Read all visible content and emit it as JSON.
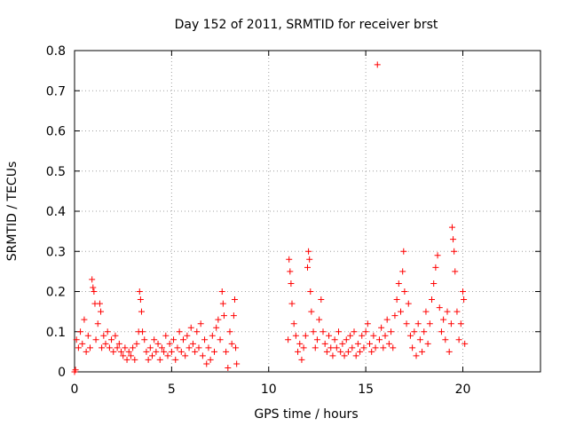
{
  "chart_data": {
    "type": "scatter",
    "title": "Day 152 of 2011, SRMTID for receiver brst",
    "xlabel": "GPS time / hours",
    "ylabel": "SRMTID / TECUs",
    "xlim": [
      0,
      24
    ],
    "ylim": [
      0,
      0.8
    ],
    "x_ticks": [
      0,
      5,
      10,
      15,
      20
    ],
    "x_tick_labels": [
      "0",
      "5",
      "10",
      "15",
      "20"
    ],
    "y_ticks": [
      0,
      0.1,
      0.2,
      0.3,
      0.4,
      0.5,
      0.6,
      0.7,
      0.8
    ],
    "y_tick_labels": [
      "0",
      "0.1",
      "0.2",
      "0.3",
      "0.4",
      "0.5",
      "0.6",
      "0.7",
      "0.8"
    ],
    "grid": true,
    "marker": "+",
    "marker_color": "#ff0000",
    "series": [
      {
        "name": "brst",
        "points": [
          [
            0.0,
            0.0
          ],
          [
            0.05,
            0.005
          ],
          [
            0.1,
            0.08
          ],
          [
            0.2,
            0.06
          ],
          [
            0.3,
            0.1
          ],
          [
            0.4,
            0.07
          ],
          [
            0.5,
            0.13
          ],
          [
            0.6,
            0.05
          ],
          [
            0.7,
            0.09
          ],
          [
            0.8,
            0.06
          ],
          [
            0.9,
            0.23
          ],
          [
            0.95,
            0.21
          ],
          [
            1.0,
            0.2
          ],
          [
            1.05,
            0.17
          ],
          [
            1.1,
            0.08
          ],
          [
            1.2,
            0.12
          ],
          [
            1.3,
            0.17
          ],
          [
            1.35,
            0.15
          ],
          [
            1.4,
            0.06
          ],
          [
            1.5,
            0.09
          ],
          [
            1.6,
            0.07
          ],
          [
            1.7,
            0.1
          ],
          [
            1.8,
            0.06
          ],
          [
            1.9,
            0.08
          ],
          [
            2.0,
            0.05
          ],
          [
            2.1,
            0.09
          ],
          [
            2.2,
            0.06
          ],
          [
            2.3,
            0.07
          ],
          [
            2.4,
            0.05
          ],
          [
            2.5,
            0.04
          ],
          [
            2.6,
            0.06
          ],
          [
            2.7,
            0.03
          ],
          [
            2.8,
            0.05
          ],
          [
            2.9,
            0.04
          ],
          [
            3.0,
            0.06
          ],
          [
            3.1,
            0.03
          ],
          [
            3.2,
            0.07
          ],
          [
            3.3,
            0.1
          ],
          [
            3.35,
            0.2
          ],
          [
            3.4,
            0.18
          ],
          [
            3.45,
            0.15
          ],
          [
            3.5,
            0.1
          ],
          [
            3.6,
            0.08
          ],
          [
            3.7,
            0.05
          ],
          [
            3.8,
            0.03
          ],
          [
            3.9,
            0.06
          ],
          [
            4.0,
            0.04
          ],
          [
            4.1,
            0.08
          ],
          [
            4.2,
            0.05
          ],
          [
            4.3,
            0.07
          ],
          [
            4.4,
            0.03
          ],
          [
            4.5,
            0.06
          ],
          [
            4.6,
            0.05
          ],
          [
            4.7,
            0.09
          ],
          [
            4.8,
            0.04
          ],
          [
            4.9,
            0.07
          ],
          [
            5.0,
            0.05
          ],
          [
            5.1,
            0.08
          ],
          [
            5.2,
            0.03
          ],
          [
            5.3,
            0.06
          ],
          [
            5.4,
            0.1
          ],
          [
            5.5,
            0.05
          ],
          [
            5.6,
            0.08
          ],
          [
            5.7,
            0.04
          ],
          [
            5.8,
            0.09
          ],
          [
            5.9,
            0.06
          ],
          [
            6.0,
            0.11
          ],
          [
            6.1,
            0.07
          ],
          [
            6.2,
            0.05
          ],
          [
            6.3,
            0.1
          ],
          [
            6.4,
            0.06
          ],
          [
            6.5,
            0.12
          ],
          [
            6.6,
            0.04
          ],
          [
            6.7,
            0.08
          ],
          [
            6.8,
            0.02
          ],
          [
            6.9,
            0.06
          ],
          [
            7.0,
            0.03
          ],
          [
            7.1,
            0.09
          ],
          [
            7.2,
            0.05
          ],
          [
            7.3,
            0.11
          ],
          [
            7.4,
            0.13
          ],
          [
            7.5,
            0.08
          ],
          [
            7.6,
            0.2
          ],
          [
            7.65,
            0.17
          ],
          [
            7.7,
            0.14
          ],
          [
            7.8,
            0.05
          ],
          [
            7.9,
            0.01
          ],
          [
            8.0,
            0.1
          ],
          [
            8.1,
            0.07
          ],
          [
            8.2,
            0.14
          ],
          [
            8.25,
            0.18
          ],
          [
            8.3,
            0.06
          ],
          [
            8.35,
            0.02
          ],
          [
            11.0,
            0.08
          ],
          [
            11.05,
            0.28
          ],
          [
            11.1,
            0.25
          ],
          [
            11.15,
            0.22
          ],
          [
            11.2,
            0.17
          ],
          [
            11.3,
            0.12
          ],
          [
            11.4,
            0.09
          ],
          [
            11.5,
            0.05
          ],
          [
            11.6,
            0.07
          ],
          [
            11.7,
            0.03
          ],
          [
            11.8,
            0.06
          ],
          [
            11.9,
            0.09
          ],
          [
            12.0,
            0.26
          ],
          [
            12.05,
            0.3
          ],
          [
            12.1,
            0.28
          ],
          [
            12.15,
            0.2
          ],
          [
            12.2,
            0.15
          ],
          [
            12.3,
            0.1
          ],
          [
            12.4,
            0.06
          ],
          [
            12.5,
            0.08
          ],
          [
            12.6,
            0.13
          ],
          [
            12.7,
            0.18
          ],
          [
            12.8,
            0.1
          ],
          [
            12.9,
            0.07
          ],
          [
            13.0,
            0.05
          ],
          [
            13.1,
            0.09
          ],
          [
            13.2,
            0.06
          ],
          [
            13.3,
            0.04
          ],
          [
            13.4,
            0.08
          ],
          [
            13.5,
            0.06
          ],
          [
            13.6,
            0.1
          ],
          [
            13.7,
            0.05
          ],
          [
            13.8,
            0.07
          ],
          [
            13.9,
            0.04
          ],
          [
            14.0,
            0.08
          ],
          [
            14.1,
            0.05
          ],
          [
            14.2,
            0.09
          ],
          [
            14.3,
            0.06
          ],
          [
            14.4,
            0.1
          ],
          [
            14.5,
            0.04
          ],
          [
            14.6,
            0.07
          ],
          [
            14.7,
            0.05
          ],
          [
            14.8,
            0.09
          ],
          [
            14.9,
            0.06
          ],
          [
            15.0,
            0.1
          ],
          [
            15.1,
            0.12
          ],
          [
            15.2,
            0.07
          ],
          [
            15.3,
            0.05
          ],
          [
            15.4,
            0.09
          ],
          [
            15.5,
            0.06
          ],
          [
            15.6,
            0.765
          ],
          [
            15.7,
            0.08
          ],
          [
            15.8,
            0.11
          ],
          [
            15.9,
            0.06
          ],
          [
            16.0,
            0.09
          ],
          [
            16.1,
            0.13
          ],
          [
            16.2,
            0.07
          ],
          [
            16.3,
            0.1
          ],
          [
            16.4,
            0.06
          ],
          [
            16.5,
            0.14
          ],
          [
            16.6,
            0.18
          ],
          [
            16.7,
            0.22
          ],
          [
            16.8,
            0.15
          ],
          [
            16.9,
            0.25
          ],
          [
            16.95,
            0.3
          ],
          [
            17.0,
            0.2
          ],
          [
            17.1,
            0.12
          ],
          [
            17.2,
            0.17
          ],
          [
            17.3,
            0.09
          ],
          [
            17.4,
            0.06
          ],
          [
            17.5,
            0.1
          ],
          [
            17.6,
            0.04
          ],
          [
            17.7,
            0.12
          ],
          [
            17.8,
            0.08
          ],
          [
            17.9,
            0.05
          ],
          [
            18.0,
            0.1
          ],
          [
            18.1,
            0.15
          ],
          [
            18.2,
            0.07
          ],
          [
            18.3,
            0.12
          ],
          [
            18.4,
            0.18
          ],
          [
            18.5,
            0.22
          ],
          [
            18.6,
            0.26
          ],
          [
            18.7,
            0.29
          ],
          [
            18.8,
            0.16
          ],
          [
            18.9,
            0.1
          ],
          [
            19.0,
            0.13
          ],
          [
            19.1,
            0.08
          ],
          [
            19.2,
            0.15
          ],
          [
            19.3,
            0.05
          ],
          [
            19.4,
            0.12
          ],
          [
            19.45,
            0.36
          ],
          [
            19.5,
            0.33
          ],
          [
            19.55,
            0.3
          ],
          [
            19.6,
            0.25
          ],
          [
            19.7,
            0.15
          ],
          [
            19.8,
            0.08
          ],
          [
            19.9,
            0.12
          ],
          [
            20.0,
            0.2
          ],
          [
            20.05,
            0.18
          ],
          [
            20.1,
            0.07
          ]
        ]
      }
    ]
  }
}
